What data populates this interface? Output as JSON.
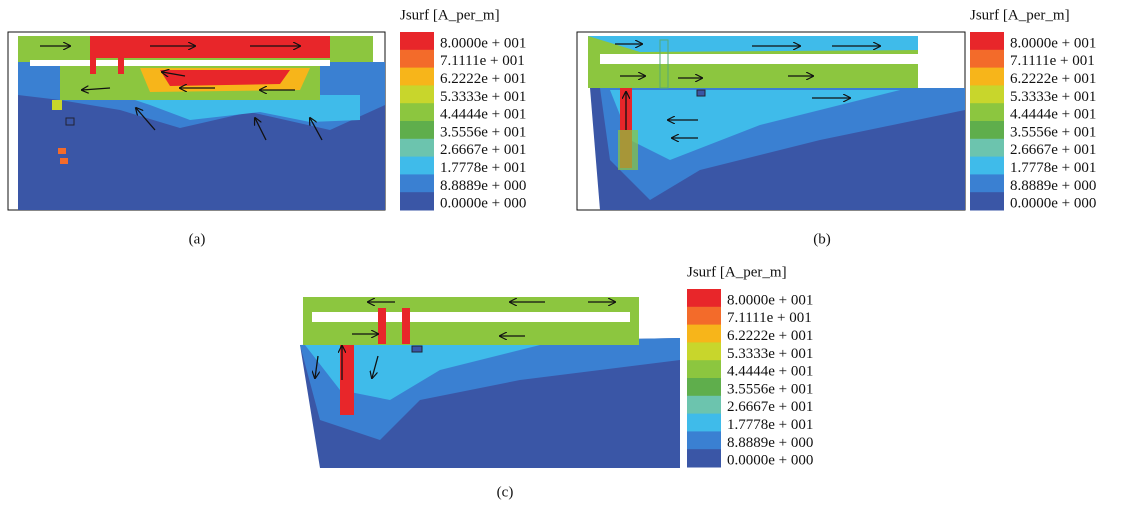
{
  "legend": {
    "title": "Jsurf [A_per_m]",
    "labels": [
      "8.0000e + 001",
      "7.1111e + 001",
      "6.2222e + 001",
      "5.3333e + 001",
      "4.4444e + 001",
      "3.5556e + 001",
      "2.6667e + 001",
      "1.7778e + 001",
      "8.8889e + 000",
      "0.0000e + 000"
    ],
    "colors": [
      "#e8262a",
      "#f36b2a",
      "#f7b51a",
      "#c8d62c",
      "#8cc63f",
      "#5fae4c",
      "#6cc4ae",
      "#3fbbea",
      "#3a80d2",
      "#3a56a6"
    ]
  },
  "panels": [
    {
      "label": "(a)"
    },
    {
      "label": "(b)"
    },
    {
      "label": "(c)"
    }
  ]
}
